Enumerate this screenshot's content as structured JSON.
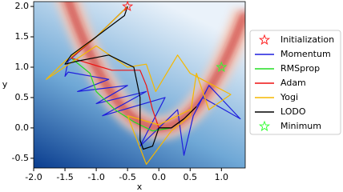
{
  "chart_data": {
    "type": "line",
    "xlabel": "x",
    "ylabel": "y",
    "xlim": [
      -2.0,
      1.38
    ],
    "ylim": [
      -0.66,
      2.08
    ],
    "xticks": [
      {
        "value": -2,
        "label": "-2.0"
      },
      {
        "value": -1.5,
        "label": "-1.5"
      },
      {
        "value": -1,
        "label": "-1.0"
      },
      {
        "value": -0.5,
        "label": "-0.5"
      },
      {
        "value": 0,
        "label": "0.0"
      },
      {
        "value": 0.5,
        "label": "0.5"
      },
      {
        "value": 1,
        "label": "1.0"
      }
    ],
    "yticks": [
      {
        "value": -0.5,
        "label": "-0.5"
      },
      {
        "value": 0,
        "label": "0.0"
      },
      0.5,
      {
        "value": 1,
        "label": "1.0"
      },
      1.5,
      {
        "value": 2,
        "label": "2.0"
      }
    ],
    "markers": [
      {
        "name": "Initialization",
        "x": -0.5,
        "y": 2.0,
        "color": "#ff2020"
      },
      {
        "name": "Minimum",
        "x": 1.0,
        "y": 1.0,
        "color": "#33ff33"
      }
    ],
    "series": [
      {
        "name": "Momentum",
        "color": "#1f1fdd",
        "x": [
          -0.5,
          -1.0,
          -1.45,
          -1.5,
          -1.45,
          -0.8,
          -1.3,
          -0.5,
          -1.0,
          -0.2,
          -0.9,
          0.1,
          -0.3,
          0.3,
          0.4,
          0.55,
          0.8,
          1.3,
          0.7,
          0.6
        ],
        "values": [
          2.0,
          1.5,
          1.1,
          0.85,
          0.92,
          0.8,
          0.6,
          0.7,
          0.4,
          0.6,
          0.2,
          0.5,
          -0.3,
          0.3,
          -0.45,
          0.2,
          0.7,
          0.15,
          0.5,
          0.35
        ]
      },
      {
        "name": "RMSprop",
        "color": "#22dd22",
        "x": [
          -0.5,
          -1.0,
          -1.4,
          -1.1,
          -1.0,
          -0.7,
          -0.4,
          -0.1,
          0.2,
          0.4,
          0.6
        ],
        "values": [
          2.0,
          1.5,
          1.15,
          0.9,
          0.6,
          0.3,
          0.1,
          -0.05,
          0.0,
          0.15,
          0.35
        ]
      },
      {
        "name": "Adam",
        "color": "#ee1111",
        "x": [
          -0.5,
          -1.0,
          -1.4,
          -0.75,
          -0.3,
          -0.2,
          -0.1,
          0.0,
          0.2,
          0.4,
          0.6
        ],
        "values": [
          2.0,
          1.5,
          1.15,
          0.95,
          0.95,
          0.7,
          0.3,
          0.0,
          0.0,
          0.15,
          0.35
        ]
      },
      {
        "name": "Yogi",
        "color": "#f5b800",
        "x": [
          -0.5,
          -1.0,
          -1.5,
          -1.8,
          -1.0,
          -0.5,
          -0.2,
          -0.05,
          0.3,
          0.5,
          1.15,
          0.8,
          0.6,
          0.5,
          0.2,
          -0.2,
          -0.5,
          0.0,
          0.5
        ],
        "values": [
          2.0,
          1.5,
          1.1,
          0.8,
          1.35,
          1.0,
          1.05,
          0.6,
          1.2,
          0.9,
          0.55,
          0.3,
          0.9,
          0.2,
          -0.05,
          -0.6,
          0.2,
          0.05,
          0.3
        ]
      },
      {
        "name": "LODO",
        "color": "#000000",
        "x": [
          -0.5,
          -0.55,
          -1.0,
          -1.4,
          -1.5,
          -1.3,
          -0.8,
          -0.4,
          -0.3,
          -0.3,
          -0.25,
          -0.1,
          0.0,
          0.2,
          0.4,
          0.55,
          0.6
        ],
        "values": [
          2.0,
          1.85,
          1.5,
          1.2,
          1.05,
          1.1,
          1.2,
          1.0,
          0.5,
          -0.2,
          -0.35,
          -0.3,
          0.0,
          0.0,
          0.15,
          0.3,
          0.35
        ]
      }
    ]
  }
}
